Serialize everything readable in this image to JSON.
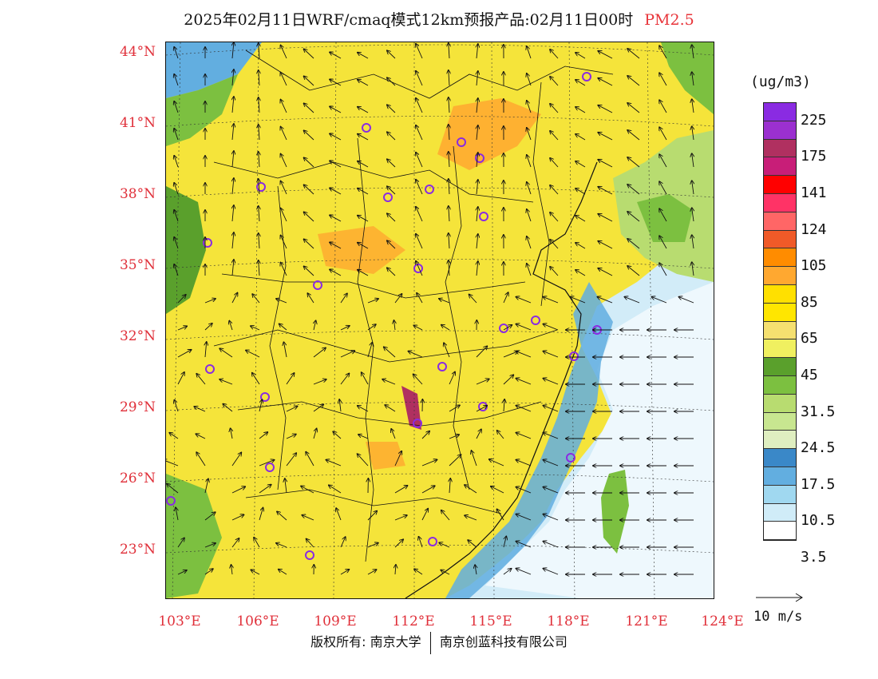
{
  "title": {
    "main": "2025年02月11日WRF/cmaq模式12km预报产品:02月11日00时",
    "pollutant": "PM2.5"
  },
  "axes": {
    "lat_labels": [
      "44°N",
      "41°N",
      "38°N",
      "35°N",
      "32°N",
      "29°N",
      "26°N",
      "23°N"
    ],
    "lon_labels": [
      "103°E",
      "106°E",
      "109°E",
      "112°E",
      "115°E",
      "118°E",
      "121°E",
      "124°E"
    ]
  },
  "colorbar": {
    "unit": "(ug/m3)",
    "labels": [
      "225",
      "175",
      "141",
      "124",
      "105",
      "85",
      "65",
      "45",
      "31.5",
      "24.5",
      "17.5",
      "10.5",
      "3.5"
    ],
    "colors": [
      "#8a2be2",
      "#9b30d0",
      "#b03060",
      "#c81e78",
      "#ff0000",
      "#ff3366",
      "#ff6666",
      "#f05a28",
      "#ff8c00",
      "#ffa830",
      "#ffe000",
      "#ffe600",
      "#f5e070",
      "#f0f060",
      "#5aa02c",
      "#7cc040",
      "#b8dc70",
      "#c8e690",
      "#dfeec0",
      "#3a88c8",
      "#62aee0",
      "#a0d8f0",
      "#d0ecf8",
      "#ffffff"
    ]
  },
  "wind_reference": {
    "label": "10 m/s"
  },
  "footer": {
    "copyright": "版权所有: 南京大学",
    "company": "南京创蓝科技有限公司"
  }
}
